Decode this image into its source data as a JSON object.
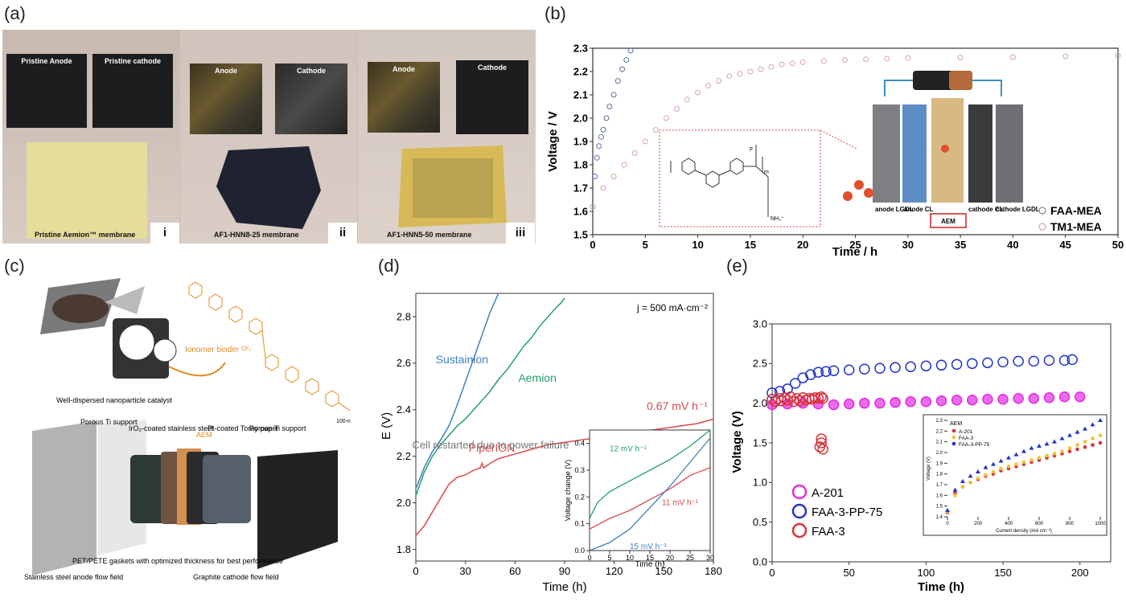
{
  "panels": {
    "a": "(a)",
    "b": "(b)",
    "c": "(c)",
    "d": "(d)",
    "e": "(e)"
  },
  "panel_a": {
    "i": {
      "pristine_anode": "Pristine Anode",
      "pristine_cathode": "Pristine cathode",
      "caption": "Pristine Aemion™ membrane",
      "roman": "i"
    },
    "ii": {
      "anode": "Anode",
      "cathode": "Cathode",
      "caption": "AF1-HNN8-25 membrane",
      "roman": "ii"
    },
    "iii": {
      "anode": "Anode",
      "cathode": "Cathode",
      "caption": "AF1-HNN5-50 membrane",
      "roman": "iii"
    }
  },
  "panel_c": {
    "labels": {
      "catalyst": "Well-dispersed nanoparticle catalyst",
      "binder": "Ionomer binder",
      "porous_ti_left": "Porous Ti support",
      "iro2": "IrO₂-coated stainless steel",
      "aem": "AEM",
      "pt": "Pt-coated Toray paper",
      "porous_ti_right": "Porous Ti support",
      "ss_flow": "Stainless steel anode flow field",
      "gaskets": "PET/PETE gaskets with optimized thickness for best performance",
      "graphite": "Graphite cathode flow field",
      "n100": "100-n",
      "cf3": "CF₃"
    }
  },
  "colors": {
    "fig_b_blue": "#5b6f9e",
    "fig_b_pink": "#d9a3a8",
    "sustainion": "#3e7fbf",
    "aemion": "#22a06b",
    "piperion": "#d8494c",
    "a201": "#e12de1",
    "faa3pp": "#2233c8",
    "faa3": "#d8323a"
  },
  "chart_data": [
    {
      "id": "b",
      "type": "scatter",
      "xlabel": "Time / h",
      "ylabel": "Voltage / V",
      "xlim": [
        0,
        50
      ],
      "ylim": [
        1.5,
        2.3
      ],
      "xticks": [
        0,
        5,
        10,
        15,
        20,
        25,
        30,
        35,
        40,
        45,
        50
      ],
      "yticks": [
        1.5,
        1.6,
        1.7,
        1.8,
        1.9,
        2.0,
        2.1,
        2.2,
        2.3
      ],
      "series": [
        {
          "name": "FAA-MEA",
          "x": [
            0,
            0.2,
            0.4,
            0.6,
            0.8,
            1.0,
            1.3,
            1.6,
            2.0,
            2.4,
            2.8,
            3.2,
            3.6
          ],
          "y": [
            1.62,
            1.75,
            1.83,
            1.88,
            1.92,
            1.95,
            2.0,
            2.05,
            2.1,
            2.16,
            2.21,
            2.25,
            2.29
          ]
        },
        {
          "name": "TM1-MEA",
          "x": [
            0,
            1,
            2,
            3,
            4,
            5,
            6,
            7,
            8,
            9,
            10,
            11,
            12,
            13,
            14,
            15,
            16,
            17,
            18,
            19,
            20,
            22,
            24,
            26,
            28,
            30,
            35,
            40,
            45,
            50
          ],
          "y": [
            1.62,
            1.7,
            1.75,
            1.8,
            1.85,
            1.9,
            1.95,
            2.0,
            2.04,
            2.08,
            2.11,
            2.14,
            2.16,
            2.18,
            2.19,
            2.2,
            2.21,
            2.22,
            2.23,
            2.235,
            2.24,
            2.245,
            2.25,
            2.252,
            2.255,
            2.258,
            2.26,
            2.262,
            2.265,
            2.268
          ]
        }
      ],
      "legend": "bottom-right",
      "inset_labels": {
        "anode_lgdl": "anode LGDL",
        "anode_cl": "anode CL",
        "aem": "AEM",
        "cathode_cl": "cathode CL",
        "cathode_lgdl": "cathode LGDL",
        "nh3": "NH₃⁺",
        "m": "m",
        "f": "F"
      }
    },
    {
      "id": "d",
      "type": "line",
      "xlabel": "Time (h)",
      "ylabel": "E (V)",
      "xlim": [
        0,
        180
      ],
      "ylim": [
        1.75,
        2.9
      ],
      "xticks": [
        0,
        30,
        60,
        90,
        120,
        150,
        180
      ],
      "yticks": [
        1.8,
        2.0,
        2.2,
        2.4,
        2.6,
        2.8
      ],
      "annotations": {
        "current": "j = 500 mA·cm⁻²",
        "rate": "0.67 mV h⁻¹",
        "restart": "Cell restarted due to power failure"
      },
      "series": [
        {
          "name": "Sustainion",
          "x": [
            0,
            5,
            10,
            15,
            20,
            25,
            30,
            35,
            40,
            45,
            50
          ],
          "y": [
            2.06,
            2.15,
            2.22,
            2.27,
            2.33,
            2.42,
            2.52,
            2.62,
            2.72,
            2.82,
            2.92
          ]
        },
        {
          "name": "Aemion",
          "x": [
            0,
            5,
            10,
            15,
            20,
            25,
            30,
            35,
            40,
            45,
            50,
            55,
            60,
            65,
            70,
            75,
            80,
            85,
            88,
            90
          ],
          "y": [
            2.03,
            2.13,
            2.2,
            2.25,
            2.29,
            2.33,
            2.36,
            2.4,
            2.44,
            2.48,
            2.53,
            2.57,
            2.62,
            2.67,
            2.71,
            2.76,
            2.8,
            2.84,
            2.86,
            2.88
          ]
        },
        {
          "name": "PiperION",
          "x": [
            0,
            5,
            10,
            15,
            20,
            25,
            30,
            35,
            39,
            40,
            41,
            45,
            50,
            60,
            70,
            80,
            90,
            100,
            110,
            120,
            130,
            140,
            150,
            160,
            170,
            180
          ],
          "y": [
            1.86,
            1.9,
            1.96,
            2.02,
            2.08,
            2.11,
            2.12,
            2.14,
            2.15,
            2.17,
            2.15,
            2.17,
            2.19,
            2.21,
            2.23,
            2.25,
            2.26,
            2.27,
            2.28,
            2.29,
            2.3,
            2.31,
            2.32,
            2.33,
            2.34,
            2.36
          ]
        }
      ],
      "inset": {
        "xlabel": "Time (h)",
        "ylabel": "Voltage change (V)",
        "xlim": [
          0,
          30
        ],
        "ylim": [
          0,
          0.45
        ],
        "xticks": [
          0,
          5,
          10,
          15,
          20,
          25,
          30
        ],
        "yticks": [
          0.0,
          0.1,
          0.2,
          0.3,
          0.4
        ],
        "labels": {
          "green": "12 mV h⁻¹",
          "red": "11 mV h⁻¹",
          "blue": "15 mV h⁻¹"
        },
        "series": [
          {
            "x": [
              0,
              2,
              5,
              10,
              15,
              20,
              25,
              30
            ],
            "y": [
              0.12,
              0.18,
              0.22,
              0.26,
              0.3,
              0.34,
              0.39,
              0.45
            ]
          },
          {
            "x": [
              0,
              5,
              10,
              15,
              20,
              25,
              30
            ],
            "y": [
              0.08,
              0.12,
              0.15,
              0.19,
              0.23,
              0.28,
              0.31
            ]
          },
          {
            "x": [
              0,
              5,
              10,
              15,
              20,
              25,
              30
            ],
            "y": [
              0.0,
              0.03,
              0.08,
              0.16,
              0.24,
              0.33,
              0.42
            ]
          }
        ]
      }
    },
    {
      "id": "e",
      "type": "scatter",
      "xlabel": "Time (h)",
      "ylabel": "Voltage (V)",
      "xlim": [
        0,
        220
      ],
      "ylim": [
        0,
        3.0
      ],
      "xticks": [
        0,
        50,
        100,
        150,
        200
      ],
      "yticks": [
        0.0,
        0.5,
        1.0,
        1.5,
        2.0,
        2.5,
        3.0
      ],
      "legend": "bottom-left",
      "series": [
        {
          "name": "A-201",
          "x": [
            0,
            10,
            20,
            30,
            40,
            50,
            60,
            70,
            80,
            90,
            100,
            110,
            120,
            130,
            140,
            150,
            160,
            170,
            180,
            190,
            200
          ],
          "y": [
            1.98,
            1.99,
            2.0,
            1.99,
            1.98,
            1.99,
            2.0,
            2.0,
            2.01,
            2.02,
            2.02,
            2.03,
            2.04,
            2.04,
            2.05,
            2.05,
            2.06,
            2.06,
            2.07,
            2.08,
            2.08
          ]
        },
        {
          "name": "FAA-3-PP-75",
          "x": [
            0,
            5,
            10,
            15,
            20,
            25,
            30,
            35,
            40,
            50,
            60,
            70,
            80,
            90,
            100,
            110,
            120,
            130,
            140,
            150,
            160,
            170,
            180,
            190,
            195
          ],
          "y": [
            2.13,
            2.15,
            2.18,
            2.25,
            2.32,
            2.36,
            2.39,
            2.4,
            2.41,
            2.42,
            2.43,
            2.44,
            2.45,
            2.46,
            2.47,
            2.48,
            2.49,
            2.5,
            2.51,
            2.52,
            2.53,
            2.53,
            2.54,
            2.54,
            2.55
          ]
        },
        {
          "name": "FAA-3",
          "x": [
            0,
            2,
            4,
            6,
            8,
            10,
            12,
            14,
            16,
            18,
            20,
            22,
            24,
            26,
            28,
            30,
            32,
            33,
            32,
            31,
            32,
            33
          ],
          "y": [
            2.05,
            2.02,
            2.06,
            2.03,
            2.07,
            2.04,
            2.08,
            2.02,
            2.06,
            2.03,
            2.07,
            2.04,
            2.06,
            2.05,
            2.07,
            2.06,
            2.08,
            2.06,
            1.55,
            1.45,
            1.5,
            1.42
          ]
        }
      ],
      "inset": {
        "title": "AEM",
        "xlabel": "Current density (mA cm⁻²)",
        "ylabel": "Voltage (V)",
        "xlim": [
          0,
          1000
        ],
        "ylim": [
          1.4,
          2.3
        ],
        "xticks": [
          0,
          200,
          400,
          600,
          800,
          1000
        ],
        "yticks": [
          1.4,
          1.5,
          1.6,
          1.7,
          1.8,
          1.9,
          2.0,
          2.1,
          2.2,
          2.3
        ],
        "series": [
          {
            "name": "A-201",
            "x": [
              0,
              50,
              100,
              150,
              200,
              250,
              300,
              350,
              400,
              450,
              500,
              550,
              600,
              650,
              700,
              750,
              800,
              850,
              900,
              950,
              1000
            ],
            "y": [
              1.44,
              1.62,
              1.68,
              1.72,
              1.75,
              1.78,
              1.8,
              1.83,
              1.85,
              1.87,
              1.89,
              1.91,
              1.93,
              1.95,
              1.97,
              1.99,
              2.01,
              2.03,
              2.05,
              2.07,
              2.09
            ]
          },
          {
            "name": "FAA-3",
            "x": [
              0,
              50,
              100,
              150,
              200,
              250,
              300,
              350,
              400,
              450,
              500,
              550,
              600,
              650,
              700,
              750,
              800,
              850,
              900,
              950,
              1000
            ],
            "y": [
              1.45,
              1.6,
              1.68,
              1.72,
              1.76,
              1.79,
              1.82,
              1.85,
              1.87,
              1.89,
              1.91,
              1.93,
              1.95,
              1.97,
              1.99,
              2.01,
              2.04,
              2.07,
              2.1,
              2.13,
              2.16
            ]
          },
          {
            "name": "FAA-3-PP-75",
            "x": [
              0,
              50,
              100,
              150,
              200,
              250,
              300,
              350,
              400,
              450,
              500,
              550,
              600,
              650,
              700,
              750,
              800,
              850,
              900,
              950,
              1000
            ],
            "y": [
              1.46,
              1.65,
              1.73,
              1.78,
              1.82,
              1.86,
              1.89,
              1.92,
              1.95,
              1.98,
              2.01,
              2.04,
              2.06,
              2.08,
              2.1,
              2.13,
              2.16,
              2.19,
              2.22,
              2.26,
              2.3
            ]
          }
        ]
      }
    }
  ]
}
